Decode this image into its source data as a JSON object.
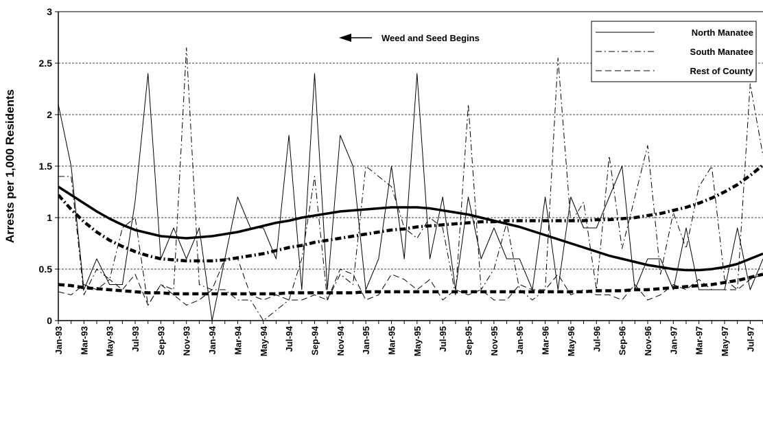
{
  "chart_data": {
    "type": "line",
    "y_label": "Arrests per 1,000 Residents",
    "annotation": "Weed and Seed Begins",
    "categories": [
      "Jan-93",
      null,
      "Mar-93",
      null,
      "May-93",
      null,
      "Jul-93",
      null,
      "Sep-93",
      null,
      "Nov-93",
      null,
      "Jan-94",
      null,
      "Mar-94",
      null,
      "May-94",
      null,
      "Jul-94",
      null,
      "Sep-94",
      null,
      "Nov-94",
      null,
      "Jan-95",
      null,
      "Mar-95",
      null,
      "May-95",
      null,
      "Jul-95",
      null,
      "Sep-95",
      null,
      "Nov-95",
      null,
      "Jan-96",
      null,
      "Mar-96",
      null,
      "May-96",
      null,
      "Jul-96",
      null,
      "Sep-96",
      null,
      "Nov-96",
      null,
      "Jan-97",
      null,
      "Mar-97",
      null,
      "May-97",
      null,
      "Jul-97",
      null
    ],
    "ylim": [
      0,
      3
    ],
    "yticks": [
      0,
      0.5,
      1,
      1.5,
      2,
      2.5,
      3
    ],
    "grid": true,
    "legend": "upper right",
    "series": [
      {
        "name": "North Manatee",
        "color": "#000000",
        "style": "solid",
        "linewidth": 1,
        "values": [
          2.1,
          1.5,
          0.3,
          0.6,
          0.35,
          0.35,
          1.16,
          2.4,
          0.6,
          0.9,
          0.6,
          0.9,
          0.0,
          0.6,
          1.2,
          0.9,
          0.9,
          0.6,
          1.8,
          0.3,
          2.4,
          0.3,
          1.8,
          1.5,
          0.3,
          0.6,
          1.5,
          0.6,
          2.4,
          0.6,
          1.2,
          0.3,
          1.2,
          0.6,
          0.9,
          0.6,
          0.6,
          0.3,
          1.2,
          0.3,
          1.2,
          0.9,
          0.9,
          1.2,
          1.5,
          0.3,
          0.6,
          0.6,
          0.3,
          0.9,
          0.3,
          0.3,
          0.3,
          0.9,
          0.3,
          0.6
        ]
      },
      {
        "name": "South Manatee",
        "color": "#000000",
        "style": "dashdot",
        "linewidth": 1,
        "values": [
          1.4,
          1.4,
          0.25,
          0.5,
          0.4,
          0.9,
          1.0,
          0.15,
          0.35,
          0.3,
          2.65,
          0.35,
          0.3,
          0.3,
          0.2,
          0.2,
          0.0,
          0.1,
          0.2,
          0.6,
          1.4,
          0.2,
          0.45,
          0.35,
          1.5,
          1.4,
          1.3,
          0.9,
          0.8,
          1.0,
          0.9,
          0.25,
          2.1,
          0.3,
          0.5,
          0.95,
          0.3,
          0.2,
          0.3,
          2.55,
          0.95,
          1.15,
          0.3,
          1.6,
          0.7,
          1.2,
          1.7,
          0.45,
          1.05,
          0.7,
          1.3,
          1.5,
          0.4,
          0.3,
          2.3,
          1.6
        ]
      },
      {
        "name": "Rest of County",
        "color": "#000000",
        "style": "dash",
        "linewidth": 1,
        "values": [
          0.28,
          0.25,
          0.35,
          0.3,
          0.4,
          0.3,
          0.45,
          0.15,
          0.35,
          0.25,
          0.15,
          0.2,
          0.3,
          0.6,
          0.6,
          0.25,
          0.2,
          0.25,
          0.2,
          0.2,
          0.25,
          0.2,
          0.5,
          0.45,
          0.2,
          0.25,
          0.45,
          0.4,
          0.3,
          0.4,
          0.2,
          0.3,
          0.25,
          0.3,
          0.2,
          0.2,
          0.35,
          0.3,
          0.3,
          0.45,
          0.25,
          0.3,
          0.25,
          0.25,
          0.2,
          0.35,
          0.2,
          0.25,
          0.35,
          0.3,
          0.4,
          0.3,
          0.3,
          0.3,
          0.4,
          0.45
        ]
      },
      {
        "color": "#000000",
        "style": "solid",
        "linewidth": 3.5,
        "values": [
          1.3,
          1.22,
          1.14,
          1.06,
          0.99,
          0.93,
          0.88,
          0.85,
          0.82,
          0.81,
          0.8,
          0.81,
          0.82,
          0.84,
          0.86,
          0.89,
          0.92,
          0.95,
          0.97,
          1.0,
          1.02,
          1.04,
          1.06,
          1.07,
          1.08,
          1.09,
          1.1,
          1.1,
          1.1,
          1.09,
          1.07,
          1.05,
          1.03,
          1.0,
          0.97,
          0.94,
          0.91,
          0.87,
          0.83,
          0.79,
          0.75,
          0.71,
          0.67,
          0.63,
          0.6,
          0.57,
          0.54,
          0.52,
          0.5,
          0.49,
          0.49,
          0.5,
          0.52,
          0.55,
          0.6,
          0.65
        ]
      },
      {
        "color": "#000000",
        "style": "dashdot",
        "linewidth": 4.5,
        "values": [
          1.22,
          1.08,
          0.96,
          0.86,
          0.78,
          0.72,
          0.67,
          0.63,
          0.6,
          0.59,
          0.58,
          0.58,
          0.58,
          0.59,
          0.61,
          0.63,
          0.65,
          0.68,
          0.71,
          0.73,
          0.76,
          0.78,
          0.8,
          0.82,
          0.84,
          0.86,
          0.88,
          0.89,
          0.91,
          0.92,
          0.93,
          0.94,
          0.95,
          0.96,
          0.96,
          0.97,
          0.97,
          0.97,
          0.97,
          0.97,
          0.97,
          0.97,
          0.98,
          0.98,
          0.99,
          1.0,
          1.02,
          1.04,
          1.07,
          1.1,
          1.14,
          1.19,
          1.25,
          1.32,
          1.41,
          1.51
        ]
      },
      {
        "color": "#000000",
        "style": "dash",
        "linewidth": 4.5,
        "values": [
          0.35,
          0.34,
          0.32,
          0.31,
          0.3,
          0.29,
          0.28,
          0.27,
          0.27,
          0.26,
          0.26,
          0.26,
          0.26,
          0.26,
          0.26,
          0.26,
          0.26,
          0.26,
          0.27,
          0.27,
          0.27,
          0.27,
          0.27,
          0.27,
          0.28,
          0.28,
          0.28,
          0.28,
          0.28,
          0.28,
          0.28,
          0.28,
          0.28,
          0.28,
          0.28,
          0.28,
          0.28,
          0.28,
          0.28,
          0.28,
          0.28,
          0.28,
          0.29,
          0.29,
          0.29,
          0.3,
          0.3,
          0.31,
          0.32,
          0.33,
          0.34,
          0.35,
          0.37,
          0.39,
          0.42,
          0.45
        ]
      }
    ]
  }
}
